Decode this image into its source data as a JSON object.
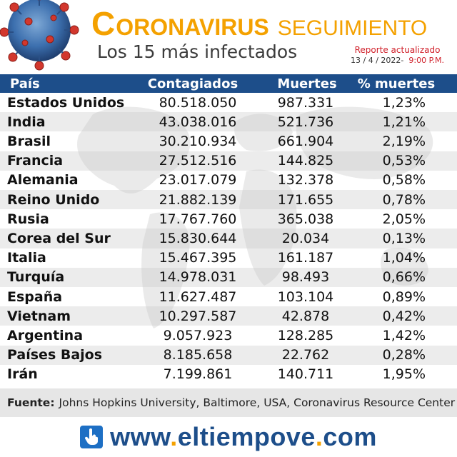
{
  "header": {
    "title_initial": "C",
    "title_rest": "ORONAVIRUS",
    "title_suffix": "SEGUIMIENTO",
    "subtitle": "Los 15 más infectados",
    "report_label": "Reporte actualizado",
    "report_date": "13 / 4 / 2022-",
    "report_time": "9:00 P.M."
  },
  "table": {
    "columns": [
      "País",
      "Contagiados",
      "Muertes",
      "% muertes"
    ],
    "rows": [
      {
        "country": "Estados Unidos",
        "cases": "80.518.050",
        "deaths": "987.331",
        "pct": "1,23%"
      },
      {
        "country": "India",
        "cases": "43.038.016",
        "deaths": "521.736",
        "pct": "1,21%"
      },
      {
        "country": "Brasil",
        "cases": "30.210.934",
        "deaths": "661.904",
        "pct": "2,19%"
      },
      {
        "country": "Francia",
        "cases": "27.512.516",
        "deaths": "144.825",
        "pct": "0,53%"
      },
      {
        "country": "Alemania",
        "cases": "23.017.079",
        "deaths": "132.378",
        "pct": "0,58%"
      },
      {
        "country": "Reino Unido",
        "cases": "21.882.139",
        "deaths": "171.655",
        "pct": "0,78%"
      },
      {
        "country": "Rusia",
        "cases": "17.767.760",
        "deaths": "365.038",
        "pct": "2,05%"
      },
      {
        "country": "Corea del Sur",
        "cases": "15.830.644",
        "deaths": "20.034",
        "pct": "0,13%"
      },
      {
        "country": "Italia",
        "cases": "15.467.395",
        "deaths": "161.187",
        "pct": "1,04%"
      },
      {
        "country": "Turquía",
        "cases": "14.978.031",
        "deaths": "98.493",
        "pct": "0,66%"
      },
      {
        "country": "España",
        "cases": "11.627.487",
        "deaths": "103.104",
        "pct": "0,89%"
      },
      {
        "country": "Vietnam",
        "cases": "10.297.587",
        "deaths": "42.878",
        "pct": "0,42%"
      },
      {
        "country": "Argentina",
        "cases": "9.057.923",
        "deaths": "128.285",
        "pct": "1,42%"
      },
      {
        "country": "Países Bajos",
        "cases": "8.185.658",
        "deaths": "22.762",
        "pct": "0,28%"
      },
      {
        "country": "Irán",
        "cases": "7.199.861",
        "deaths": "140.711",
        "pct": "1,95%"
      }
    ]
  },
  "source": {
    "label": "Fuente:",
    "text": "Johns Hopkins University, Baltimore, USA, Coronavirus Resource Center"
  },
  "footer": {
    "url_www": "www",
    "url_name": "eltiempove",
    "url_tld": "com"
  },
  "colors": {
    "header_blue": "#1d4e8a",
    "accent_orange": "#f4a100",
    "report_red": "#d0202a"
  }
}
